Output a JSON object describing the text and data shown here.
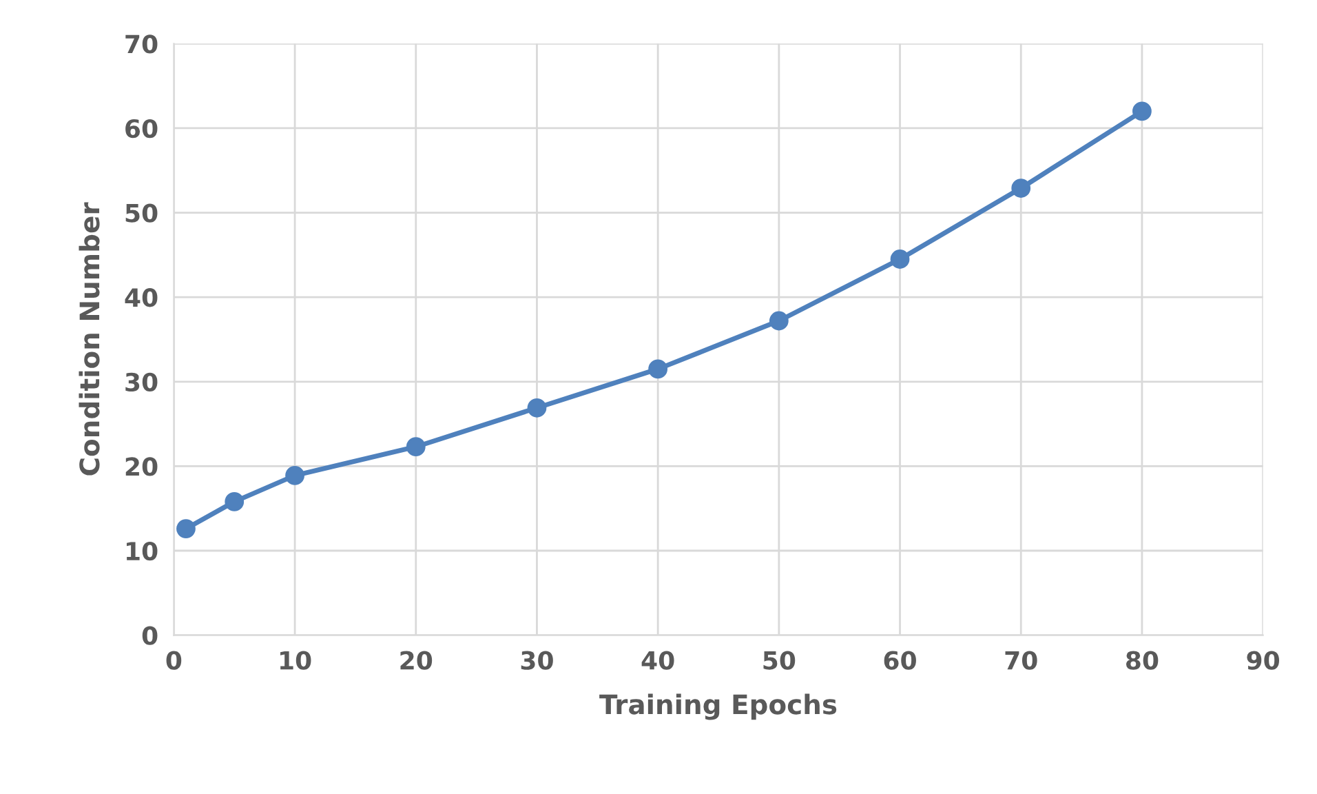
{
  "chart_data": {
    "type": "line",
    "xlabel": "Training Epochs",
    "ylabel": "Condition Number",
    "x": [
      1,
      5,
      10,
      20,
      30,
      40,
      50,
      60,
      70,
      80
    ],
    "series": [
      {
        "color": "#4f81bd",
        "values": [
          12.6,
          15.8,
          18.9,
          22.3,
          26.9,
          31.5,
          37.2,
          44.5,
          52.9,
          62.0
        ]
      }
    ],
    "xlim": [
      0,
      90
    ],
    "xticks": [
      0,
      10,
      20,
      30,
      40,
      50,
      60,
      70,
      80,
      90
    ],
    "ylim": [
      0,
      70
    ],
    "yticks": [
      0,
      10,
      20,
      30,
      40,
      50,
      60,
      70
    ],
    "grid": true,
    "marker": "circle",
    "line_style": "solid"
  }
}
